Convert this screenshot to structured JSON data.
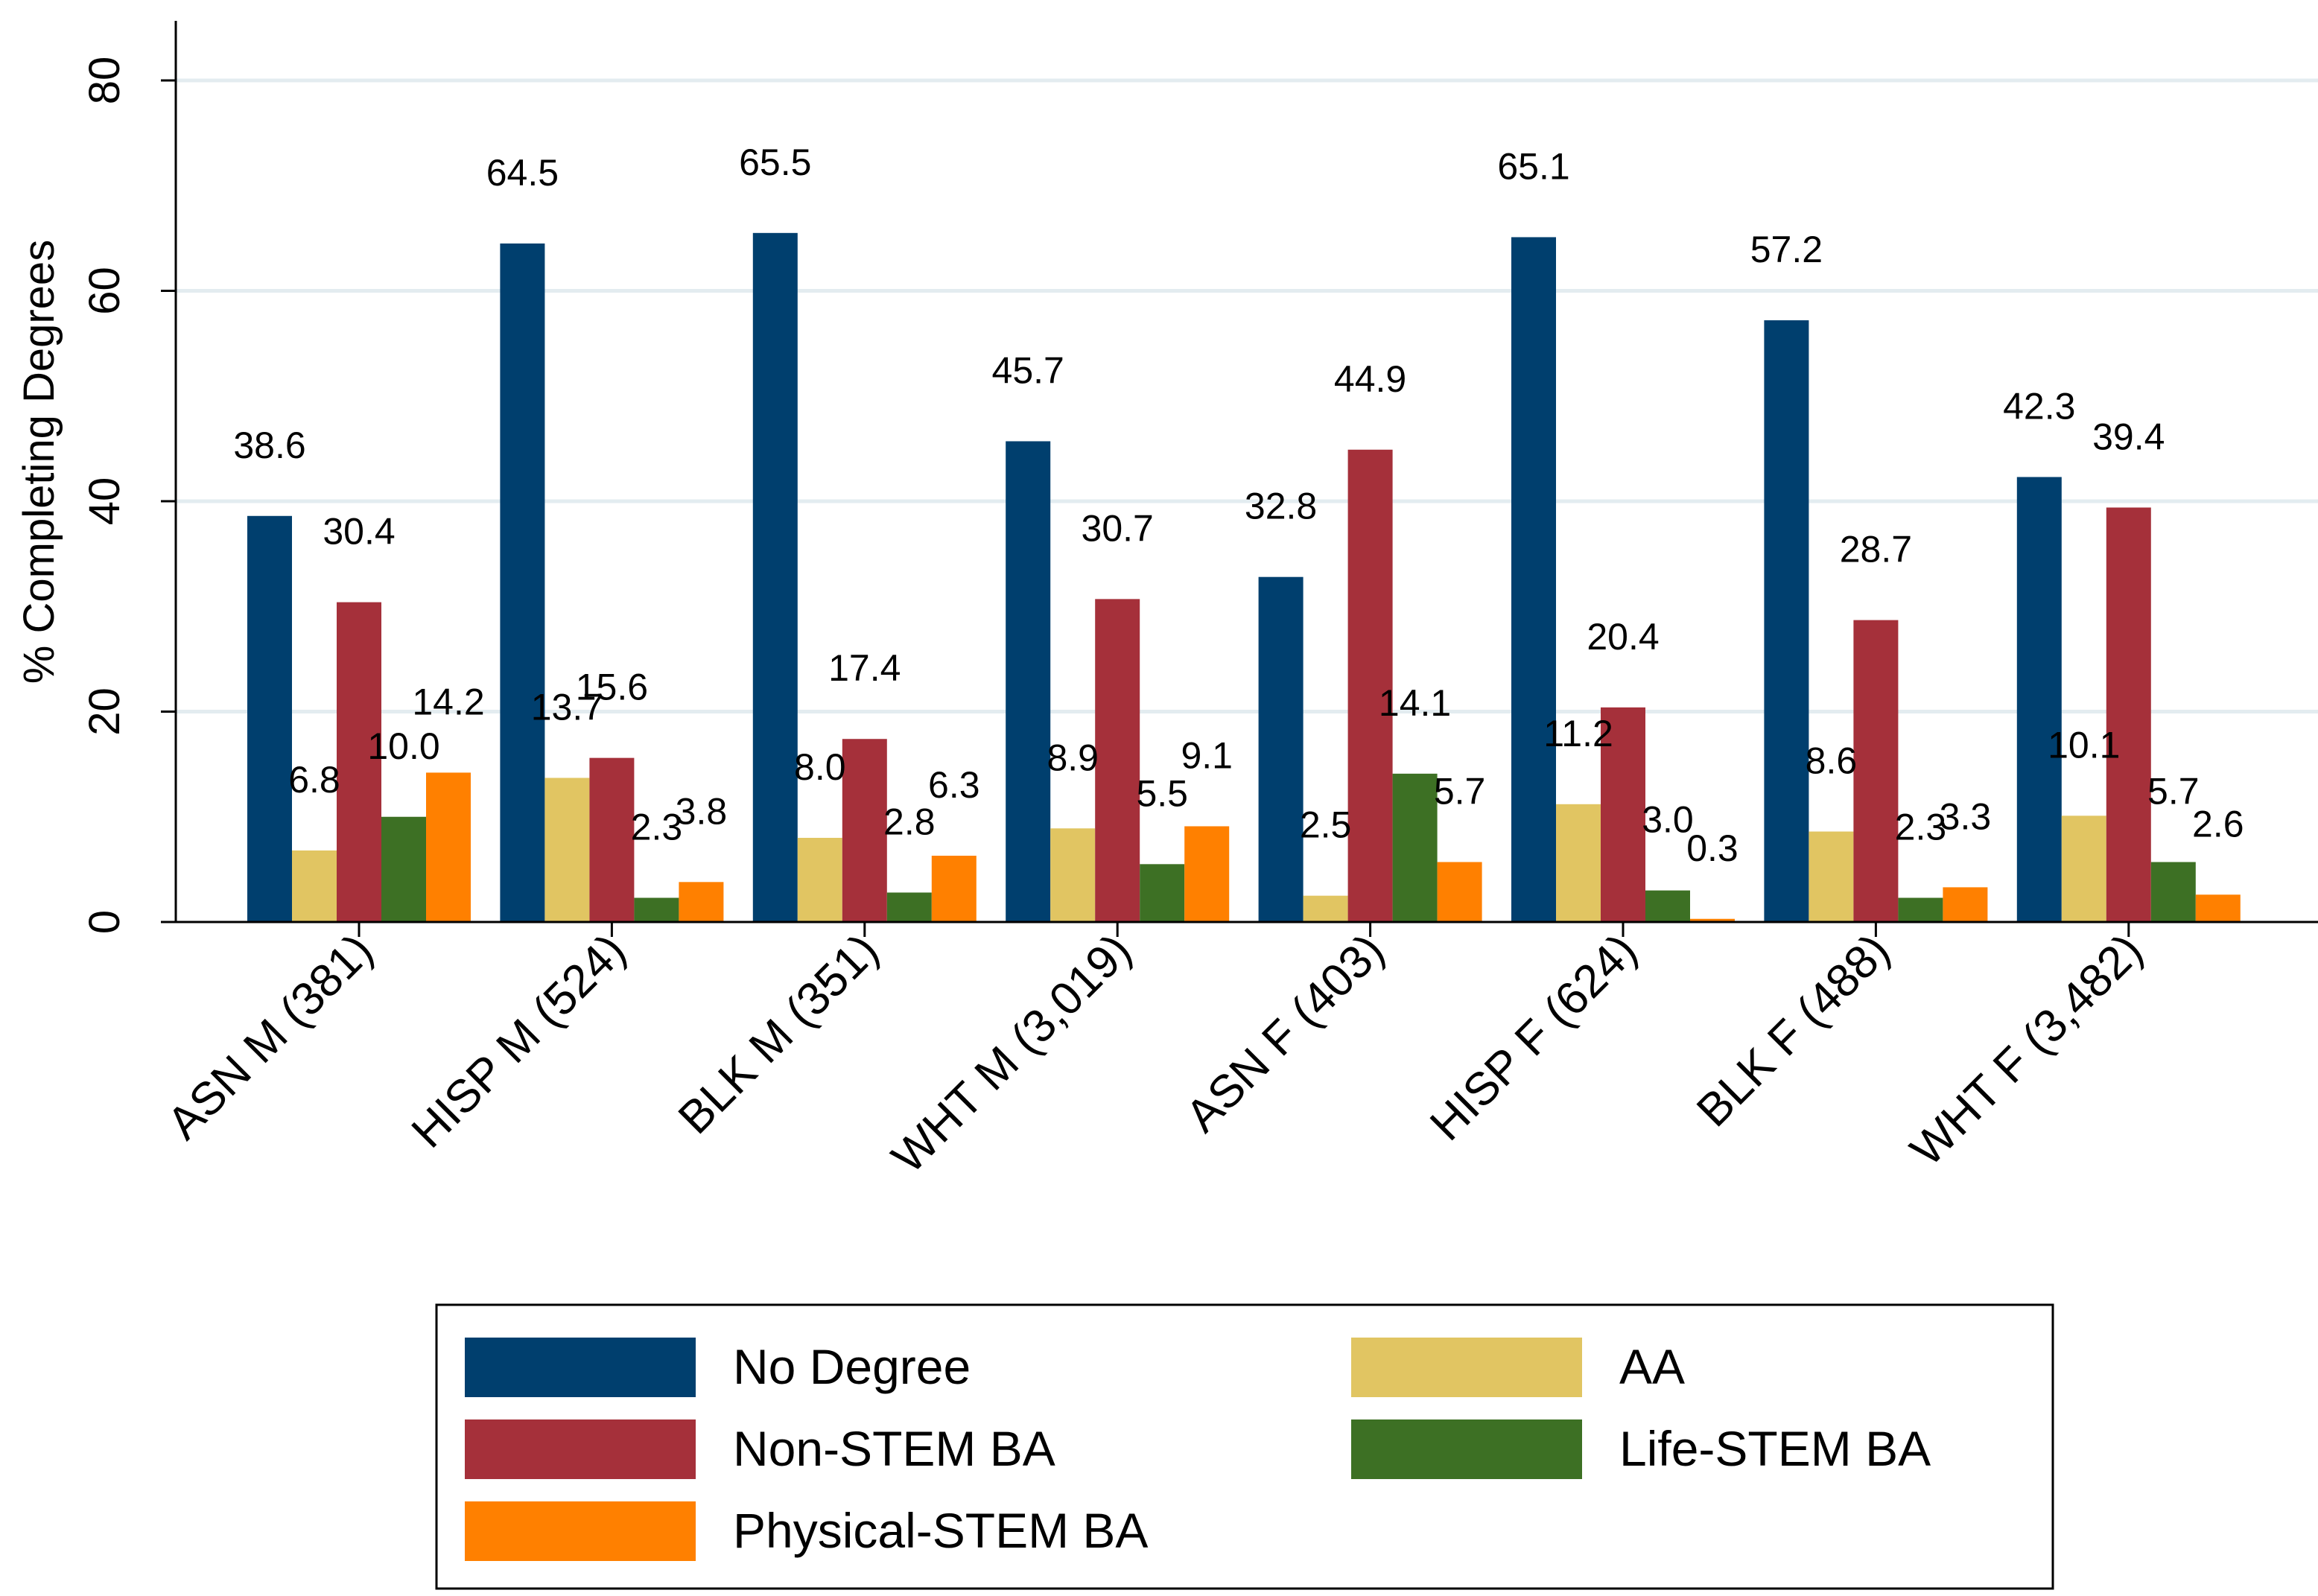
{
  "chart_data": {
    "type": "bar",
    "title": "",
    "xlabel": "",
    "ylabel": "% Completing Degrees",
    "ylim": [
      0,
      85
    ],
    "yticks": [
      0,
      20,
      40,
      60,
      80
    ],
    "grid": true,
    "legend_position": "bottom",
    "categories": [
      "ASN M (381)",
      "HISP M (524)",
      "BLK M (351)",
      "WHT M (3,019)",
      "ASN F (403)",
      "HISP F (624)",
      "BLK F (488)",
      "WHT F (3,482)"
    ],
    "series": [
      {
        "name": "No Degree",
        "color": "#003f6e",
        "values": [
          38.6,
          64.5,
          65.5,
          45.7,
          32.8,
          65.1,
          57.2,
          42.3
        ],
        "labels": [
          "38.6",
          "64.5",
          "65.5",
          "45.7",
          "32.8",
          "65.1",
          "57.2",
          "42.3"
        ]
      },
      {
        "name": "AA",
        "color": "#e1c562",
        "values": [
          6.8,
          13.7,
          8.0,
          8.9,
          2.5,
          11.2,
          8.6,
          10.1
        ],
        "labels": [
          "6.8",
          "13.7",
          "8.0",
          "8.9",
          "2.5",
          "11.2",
          "8.6",
          "10.1"
        ]
      },
      {
        "name": "Non-STEM BA",
        "color": "#a5303a",
        "values": [
          30.4,
          15.6,
          17.4,
          30.7,
          44.9,
          20.4,
          28.7,
          39.4
        ],
        "labels": [
          "30.4",
          "15.6",
          "17.4",
          "30.7",
          "44.9",
          "20.4",
          "28.7",
          "39.4"
        ]
      },
      {
        "name": "Life-STEM BA",
        "color": "#3d7024",
        "values": [
          10.0,
          2.3,
          2.8,
          5.5,
          14.1,
          3.0,
          2.3,
          5.7
        ],
        "labels": [
          "10.0",
          "2.3",
          "2.8",
          "5.5",
          "14.1",
          "3.0",
          "2.3",
          "5.7"
        ]
      },
      {
        "name": "Physical-STEM BA",
        "color": "#ff8000",
        "values": [
          14.2,
          3.8,
          6.3,
          9.1,
          5.7,
          0.3,
          3.3,
          2.6
        ],
        "labels": [
          "14.2",
          "3.8",
          "6.3",
          "9.1",
          "5.7",
          "0.3",
          "3.3",
          "2.6"
        ]
      }
    ]
  }
}
